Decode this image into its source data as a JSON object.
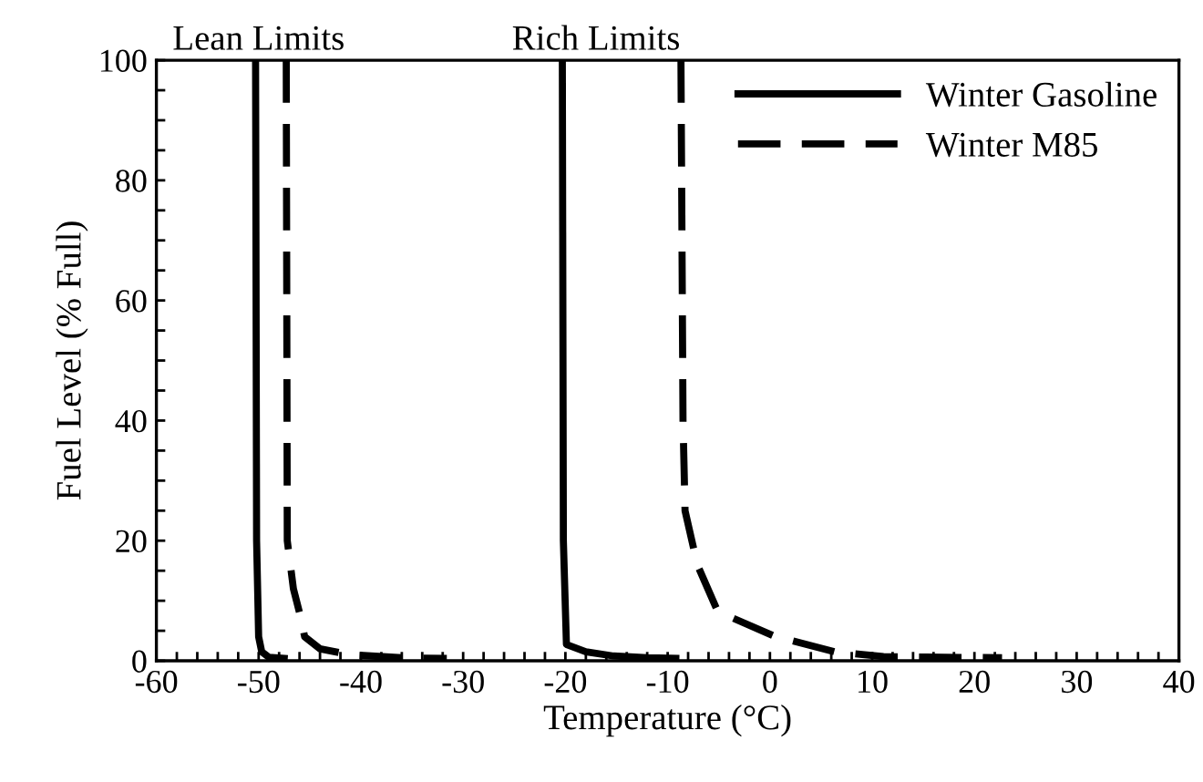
{
  "chart_data": {
    "type": "line",
    "xlabel": "Temperature (°C)",
    "ylabel": "Fuel Level (% Full)",
    "annotations": [
      "Lean Limits",
      "Rich Limits"
    ],
    "series": [
      {
        "name": "Winter Gasoline",
        "color": "#000000",
        "line_style": "solid",
        "x": [
          -50.3,
          -50.2,
          -50.0,
          -49.7,
          -49.0,
          -47.5
        ],
        "values": [
          100,
          20,
          4,
          1.5,
          0.6,
          0.4
        ]
      },
      {
        "color": "#000000",
        "line_style": "solid",
        "x": [
          -20.3,
          -20.2,
          -19.9,
          -18.0,
          -15.3,
          -12.0,
          -9.2
        ],
        "values": [
          100,
          20,
          2.7,
          1.5,
          0.8,
          0.5,
          0.4
        ]
      },
      {
        "name": "Winter M85",
        "color": "#000000",
        "line_style": "dashed",
        "x": [
          -47.3,
          -47.2,
          -46.6,
          -46.0,
          -45.5,
          -44.0,
          -41.0,
          -36.0,
          -31.6
        ],
        "values": [
          100,
          20,
          12,
          8,
          4,
          2,
          1,
          0.5,
          0.4
        ]
      },
      {
        "color": "#000000",
        "line_style": "dashed",
        "x": [
          -8.7,
          -8.5,
          -8.3,
          -7.1,
          -5.1,
          0.3,
          6.3,
          11.1,
          22.7
        ],
        "values": [
          100,
          40,
          25,
          16,
          8.2,
          4.2,
          1.5,
          0.7,
          0.5
        ]
      }
    ],
    "xlim": [
      -60,
      40
    ],
    "ylim": [
      0,
      100
    ],
    "xticks": [
      -60,
      {
        "value": -58,
        "label": null
      },
      {
        "value": -56,
        "label": null
      },
      {
        "value": -54,
        "label": null
      },
      {
        "value": -52,
        "label": null
      },
      -50,
      {
        "value": -48,
        "label": null
      },
      {
        "value": -46,
        "label": null
      },
      {
        "value": -44,
        "label": null
      },
      {
        "value": -42,
        "label": null
      },
      -40,
      {
        "value": -38,
        "label": null
      },
      {
        "value": -36,
        "label": null
      },
      {
        "value": -34,
        "label": null
      },
      {
        "value": -32,
        "label": null
      },
      -30,
      {
        "value": -28,
        "label": null
      },
      {
        "value": -26,
        "label": null
      },
      {
        "value": -24,
        "label": null
      },
      {
        "value": -22,
        "label": null
      },
      -20,
      {
        "value": -18,
        "label": null
      },
      {
        "value": -16,
        "label": null
      },
      {
        "value": -14,
        "label": null
      },
      {
        "value": -12,
        "label": null
      },
      -10,
      {
        "value": -8,
        "label": null
      },
      {
        "value": -6,
        "label": null
      },
      {
        "value": -4,
        "label": null
      },
      {
        "value": -2,
        "label": null
      },
      0,
      {
        "value": 2,
        "label": null
      },
      {
        "value": 4,
        "label": null
      },
      {
        "value": 6,
        "label": null
      },
      {
        "value": 8,
        "label": null
      },
      10,
      {
        "value": 12,
        "label": null
      },
      {
        "value": 14,
        "label": null
      },
      {
        "value": 16,
        "label": null
      },
      {
        "value": 18,
        "label": null
      },
      20,
      {
        "value": 22,
        "label": null
      },
      {
        "value": 24,
        "label": null
      },
      {
        "value": 26,
        "label": null
      },
      {
        "value": 28,
        "label": null
      },
      30,
      {
        "value": 32,
        "label": null
      },
      {
        "value": 34,
        "label": null
      },
      {
        "value": 36,
        "label": null
      },
      {
        "value": 38,
        "label": null
      },
      40
    ],
    "yticks": [
      0,
      {
        "value": 5,
        "label": null
      },
      {
        "value": 10,
        "label": null
      },
      {
        "value": 15,
        "label": null
      },
      20,
      {
        "value": 25,
        "label": null
      },
      {
        "value": 30,
        "label": null
      },
      {
        "value": 35,
        "label": null
      },
      40,
      {
        "value": 45,
        "label": null
      },
      {
        "value": 50,
        "label": null
      },
      {
        "value": 55,
        "label": null
      },
      60,
      {
        "value": 65,
        "label": null
      },
      {
        "value": 70,
        "label": null
      },
      {
        "value": 75,
        "label": null
      },
      80,
      {
        "value": 85,
        "label": null
      },
      {
        "value": 90,
        "label": null
      },
      {
        "value": 95,
        "label": null
      },
      100
    ],
    "grid": false,
    "legend": "top right",
    "marker": "none"
  }
}
